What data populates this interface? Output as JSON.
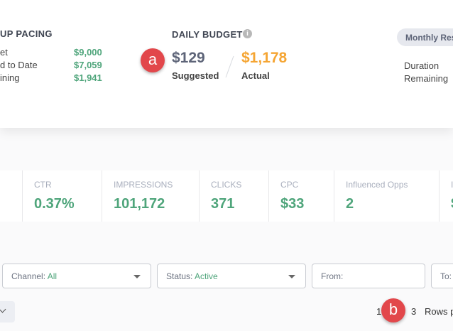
{
  "pacing": {
    "title": "UP PACING",
    "rows": [
      {
        "label": "et",
        "value": "$9,000"
      },
      {
        "label": "d to Date",
        "value": "$7,059"
      },
      {
        "label": "ining",
        "value": "$1,941"
      }
    ]
  },
  "daily_budget": {
    "title": "DAILY BUDGET",
    "suggested_value": "$129",
    "suggested_label": "Suggested",
    "actual_value": "$1,178",
    "actual_label": "Actual"
  },
  "monthly": {
    "pill": "Monthly Res",
    "duration": "Duration",
    "remaining": "Remaining"
  },
  "metrics": [
    {
      "label": "CTR",
      "value": "0.37%"
    },
    {
      "label": "IMPRESSIONS",
      "value": "101,172"
    },
    {
      "label": "CLICKS",
      "value": "371"
    },
    {
      "label": "CPC",
      "value": "$33"
    },
    {
      "label": "Influenced Opps",
      "value": "2"
    },
    {
      "label": "I",
      "value": "$"
    }
  ],
  "filters": {
    "channel_label": "Channel:",
    "channel_value": "All",
    "status_label": "Status:",
    "status_value": "Active",
    "from_label": "From:",
    "to_label": "To:"
  },
  "pagination": {
    "p1": "1",
    "p3": "3",
    "rows": "Rows p"
  },
  "badges": {
    "a": "a",
    "b": "b"
  },
  "colors": {
    "accent_green": "#4fa57b",
    "actual_orange": "#f5a533",
    "badge_red": "#e2474b"
  }
}
